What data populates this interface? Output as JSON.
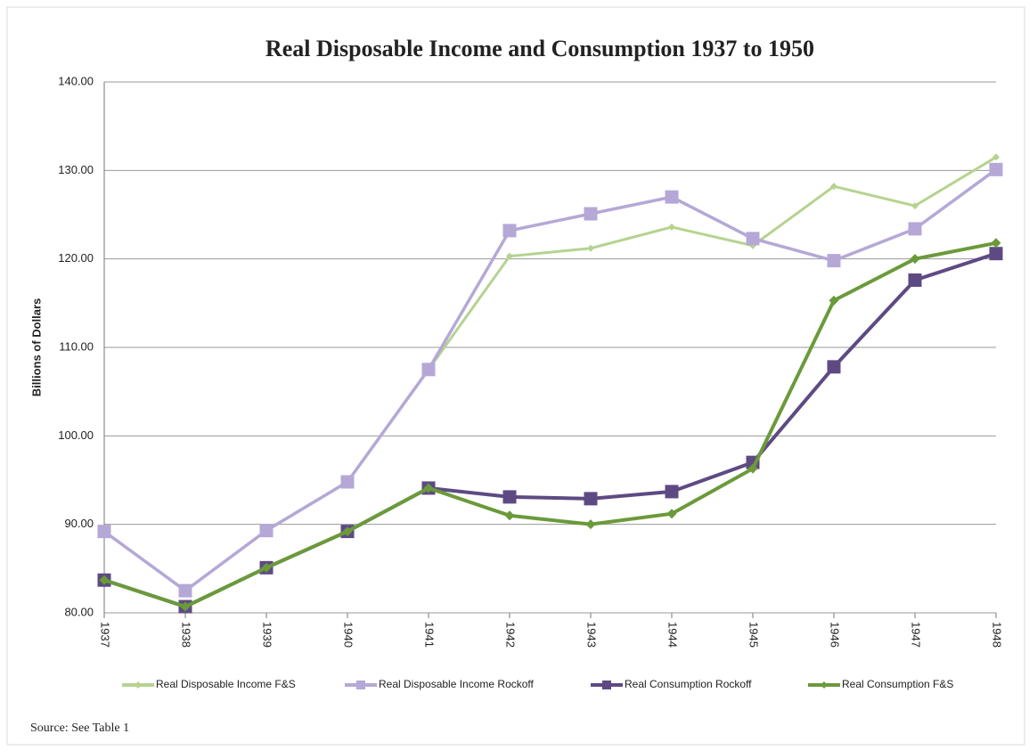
{
  "chart_data": {
    "type": "line",
    "title": "Real Disposable Income and Consumption 1937 to  1950",
    "y_label": "Billions of Dollars",
    "source": "Source: See Table 1",
    "categories": [
      "1937",
      "1938",
      "1939",
      "1940",
      "1941",
      "1942",
      "1943",
      "1944",
      "1945",
      "1946",
      "1947",
      "1948"
    ],
    "series": [
      {
        "name": "Real Disposable Income F&S",
        "color": "#b5d38f",
        "marker": "diamond",
        "values": [
          89.2,
          82.5,
          89.3,
          94.8,
          107.5,
          120.3,
          121.2,
          123.6,
          121.5,
          128.2,
          126.0,
          131.5
        ]
      },
      {
        "name": "Real Disposable Income Rockoff",
        "color": "#b5a8d6",
        "marker": "square",
        "values": [
          89.2,
          82.5,
          89.3,
          94.8,
          107.5,
          123.2,
          125.1,
          127.0,
          122.3,
          119.8,
          123.4,
          130.1
        ]
      },
      {
        "name": "Real Consumption Rockoff",
        "color": "#5e4a83",
        "marker": "square",
        "values": [
          83.7,
          80.7,
          85.1,
          89.2,
          94.1,
          93.1,
          92.9,
          93.7,
          97.0,
          107.8,
          117.6,
          120.6
        ]
      },
      {
        "name": "Real Consumption F&S",
        "color": "#6b9a3a",
        "marker": "diamond",
        "values": [
          83.7,
          80.7,
          85.1,
          89.2,
          94.1,
          91.0,
          90.0,
          91.2,
          96.3,
          115.3,
          120.0,
          121.8
        ]
      }
    ],
    "ylim": [
      80,
      140
    ],
    "yticks": [
      {
        "value": 80,
        "label": "80.00"
      },
      {
        "value": 90,
        "label": "90.00"
      },
      {
        "value": 100,
        "label": "100.00"
      },
      {
        "value": 110,
        "label": "110.00"
      },
      {
        "value": 120,
        "label": "120.00"
      },
      {
        "value": 130,
        "label": "130.00"
      },
      {
        "value": 140,
        "label": "140.00"
      }
    ],
    "grid": true,
    "legend": "bottom"
  }
}
